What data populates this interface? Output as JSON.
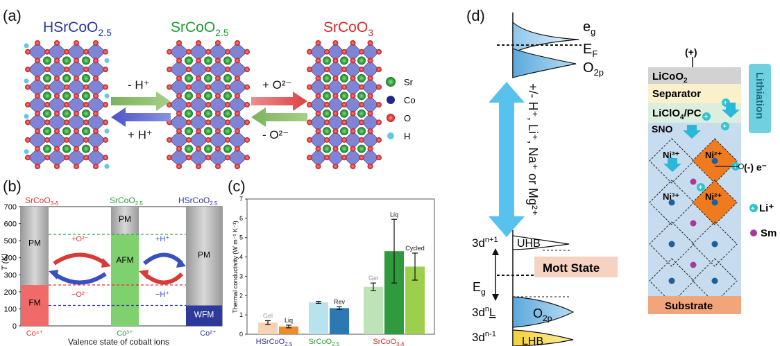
{
  "panel_a": {
    "label": "(a)",
    "titles": {
      "left": "HSrCoO",
      "left_sub": "2.5",
      "mid": "SrCoO",
      "mid_sub": "2.5",
      "right": "SrCoO",
      "right_sub": "3"
    },
    "arrow1_top": "- H⁺",
    "arrow1_bottom": "+ H⁺",
    "arrow2_top": "+ O²⁻",
    "arrow2_bottom": "- O²⁻",
    "legend": [
      {
        "label": "Sr",
        "color": "#1e8a2e"
      },
      {
        "label": "Co",
        "color": "#23258f"
      },
      {
        "label": "O",
        "color": "#d42a2a"
      },
      {
        "label": "H",
        "color": "#62c9e0"
      }
    ]
  },
  "panel_b": {
    "label": "(b)",
    "top_labels": {
      "left": "SrCoO",
      "left_sub": "3-δ",
      "mid": "SrCoO",
      "mid_sub": "2.5",
      "right": "HSrCoO",
      "right_sub": "2.5"
    },
    "ylabel": "T (K)",
    "xlabel": "Valence state of cobalt ions",
    "yticks": [
      "0",
      "100",
      "200",
      "300",
      "400",
      "500",
      "600",
      "700"
    ],
    "bottom_ticks": {
      "left": "Co⁴⁺",
      "mid": "Co³⁺",
      "right": "Co²⁺"
    },
    "phases": {
      "pm_left": "PM",
      "fm": "FM",
      "pm_mid": "PM",
      "afm": "AFM",
      "pm_right": "PM",
      "wfm": "WFM"
    },
    "arrows": {
      "o_plus": "+O²⁻",
      "o_minus": "−O²⁻",
      "h_plus": "+H⁺",
      "h_minus": "−H⁺"
    },
    "chart_data": {
      "type": "bar",
      "regions": [
        {
          "name": "SrCoO3-δ",
          "transitions_K": [
            240
          ],
          "phases": [
            "FM",
            "PM"
          ]
        },
        {
          "name": "SrCoO2.5",
          "transitions_K": [
            537
          ],
          "phases": [
            "AFM",
            "PM"
          ]
        },
        {
          "name": "HSrCoO2.5",
          "transitions_K": [
            120
          ],
          "phases": [
            "WFM",
            "PM"
          ]
        }
      ],
      "ylim": [
        0,
        700
      ]
    }
  },
  "panel_c": {
    "label": "(c)",
    "ylabel": "Thermal conductivity (W m⁻¹ K⁻¹)",
    "yticks": [
      "0",
      "1",
      "2",
      "3",
      "4",
      "5",
      "6",
      "7"
    ],
    "groups": [
      {
        "name": "HSrCoO",
        "sub": "2.5"
      },
      {
        "name": "SrCoO",
        "sub": "2.5"
      },
      {
        "name": "SrCoO",
        "sub": "3-δ"
      }
    ],
    "chart_data": {
      "type": "bar",
      "ylim": [
        0,
        7
      ],
      "bars": [
        {
          "group": 0,
          "label": "Gel",
          "value": 0.6,
          "err": 0.1,
          "color": "#f7d3b6"
        },
        {
          "group": 0,
          "label": "Liq",
          "value": 0.4,
          "err": 0.07,
          "color": "#f08a2c"
        },
        {
          "group": 1,
          "label": "",
          "value": 1.65,
          "err": 0.05,
          "color": "#b8e3ec"
        },
        {
          "group": 1,
          "label": "Rev",
          "value": 1.35,
          "err": 0.07,
          "color": "#2c78b2"
        },
        {
          "group": 2,
          "label": "Gel",
          "value": 2.45,
          "err": 0.2,
          "color": "#bfe3b8"
        },
        {
          "group": 2,
          "label": "Liq",
          "value": 4.3,
          "err": 1.65,
          "color": "#2f9a3e"
        },
        {
          "group": 2,
          "label": "Cycled",
          "value": 3.5,
          "err": 0.7,
          "color": "#9cd04c"
        }
      ]
    }
  },
  "panel_d": {
    "label": "(d)",
    "eg": "e",
    "eg_sub": "g",
    "ef": "E",
    "ef_sub": "F",
    "o2p": "O",
    "o2p_sub": "2p",
    "ion_text": "+/- H⁺, Li⁺, Na⁺ or Mg²⁺",
    "uhb": "UHB",
    "lhb": "LHB",
    "o2p_low": "O",
    "o2p_low_sub": "2p",
    "eg_gap": "E",
    "eg_gap_sub": "g",
    "mott": "Mott State",
    "levels": {
      "l1": "3d",
      "l1_sup": "n+1",
      "l2": "3d",
      "l2_sup": "n",
      "l2_suffix": "L",
      "l3": "3d",
      "l3_sup": "n-1"
    }
  },
  "panel_e": {
    "plus": "(+)",
    "minus": "(-) e⁻",
    "layers": {
      "licoo2": "LiCoO",
      "licoo2_sub": "2",
      "separator": "Separator",
      "electrolyte": "LiClO",
      "electrolyte_sub": "4",
      "electrolyte_suffix": "/PC",
      "sno": "SNO",
      "substrate": "Substrate"
    },
    "lithiation": "Lithiation",
    "ni3": "Ni³⁺",
    "ni2": "Ni²⁺",
    "legend_li": "Li⁺",
    "legend_sm": "Sm"
  }
}
